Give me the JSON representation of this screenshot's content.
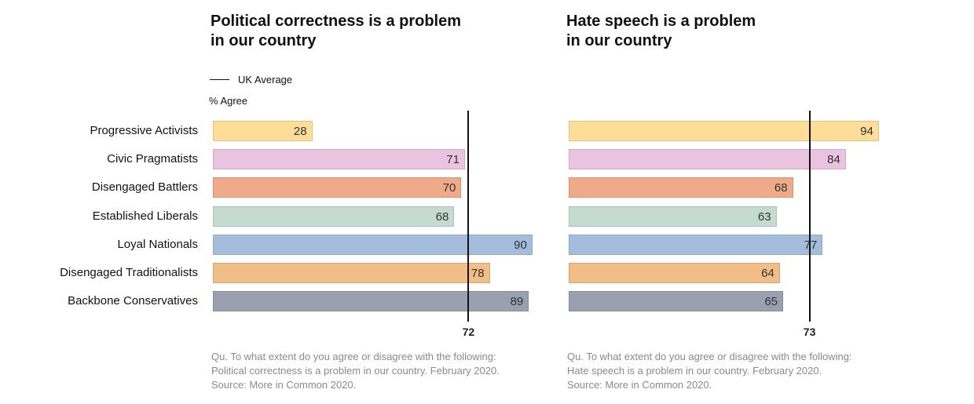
{
  "chart_data": [
    {
      "type": "bar",
      "orientation": "horizontal",
      "title": [
        "Political correctness is a problem",
        "in our country"
      ],
      "legend": true,
      "value_axis_label": "% Agree",
      "reference_line": {
        "name": "UK Average",
        "value": 72
      },
      "categories": [
        "Progressive Activists",
        "Civic Pragmatists",
        "Disengaged Battlers",
        "Established Liberals",
        "Loyal Nationals",
        "Disengaged Traditionalists",
        "Backbone Conservatives"
      ],
      "values": [
        28,
        71,
        70,
        68,
        90,
        78,
        89
      ],
      "colors": [
        "#fddd98",
        "#e9c3df",
        "#efaa88",
        "#c3dbd1",
        "#a4bddd",
        "#f2be88",
        "#9aa0b0"
      ],
      "notes": [
        "Qu. To what extent do you agree or disagree with the following:",
        "Political correctness is a problem in our country.  February 2020.",
        "Source: More in Common 2020."
      ]
    },
    {
      "type": "bar",
      "orientation": "horizontal",
      "title": [
        "Hate speech is a problem",
        "in our country"
      ],
      "legend": false,
      "reference_line": {
        "value": 73
      },
      "categories": [
        null,
        null,
        null,
        null,
        null,
        null,
        null
      ],
      "values": [
        94,
        84,
        68,
        63,
        77,
        64,
        65
      ],
      "colors": [
        "#fddd98",
        "#e9c3df",
        "#efaa88",
        "#c3dbd1",
        "#a4bddd",
        "#f2be88",
        "#9aa0b0"
      ],
      "notes": [
        "Qu. To what extent do you agree or disagree with the following:",
        "Hate speech is a problem in our country.  February 2020.",
        "Source: More in Common 2020."
      ]
    }
  ]
}
